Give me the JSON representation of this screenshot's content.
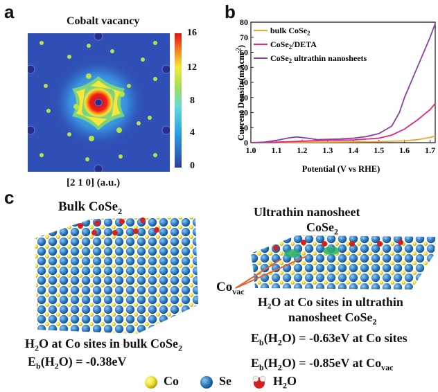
{
  "panel_a": {
    "letter": "a",
    "title": "Cobalt vacancy",
    "axis_label": "[2 1 0] (a.u.)",
    "colorbar_ticks": [
      "16",
      "12",
      "8",
      "4",
      "0"
    ]
  },
  "panel_b": {
    "letter": "b"
  },
  "panel_c": {
    "letter": "c",
    "bulk_title": "Bulk CoSe",
    "bulk_title_sub": "2",
    "nano_title_line1": "Ultrathin nanosheet",
    "nano_title_line2": "CoSe",
    "nano_title_sub": "2",
    "covac_label": "Co",
    "covac_sub": "vac",
    "bulk_caption": "H",
    "bulk_caption_rest": "O at Co sites in bulk CoSe",
    "bulk_eb_prefix": "E",
    "bulk_eb_sub": "b",
    "bulk_eb_mid": "(H",
    "bulk_eb_rest": "O) = -0.38eV",
    "nano_caption_line1": "H₂O at Co sites in ultrathin",
    "nano_caption_line2": "nanosheet CoSe",
    "nano_eb1_rest": "O) = -0.63eV at Co sites",
    "nano_eb2_rest": "O) = -0.85eV at Co",
    "nano_eb2_sub": "vac",
    "legend": [
      {
        "label": "Co",
        "color": "#f2e12e"
      },
      {
        "label": "Se",
        "color": "#2f7fc1"
      },
      {
        "label": "H",
        "sub": "2",
        "rest": "O",
        "color": "#d42020"
      }
    ]
  },
  "chart_data": {
    "type": "line",
    "xlabel": "Potential (V vs RHE)",
    "ylabel": "Current Density(mAcm",
    "ylabel_sup": "-2",
    "xlim": [
      1.0,
      1.72
    ],
    "ylim": [
      0,
      80
    ],
    "xticks": [
      "1.0",
      "1.1",
      "1.2",
      "1.3",
      "1.4",
      "1.5",
      "1.6",
      "1.7"
    ],
    "yticks": [
      "0",
      "10",
      "20",
      "30",
      "40",
      "50",
      "60",
      "70",
      "80"
    ],
    "legend_position": "top-left",
    "series": [
      {
        "name": "bulk CoSe",
        "name_sub": "2",
        "color": "#f5a623",
        "x": [
          1.0,
          1.1,
          1.2,
          1.3,
          1.4,
          1.5,
          1.6,
          1.65,
          1.7,
          1.72
        ],
        "y": [
          0,
          0.2,
          0.3,
          0.4,
          0.5,
          0.7,
          1.2,
          2,
          3.5,
          4.5
        ]
      },
      {
        "name": "CoSe",
        "name_sub": "2",
        "name_rest": "/DETA",
        "color": "#e8237c",
        "x": [
          1.0,
          1.1,
          1.2,
          1.3,
          1.4,
          1.5,
          1.55,
          1.6,
          1.65,
          1.7,
          1.72
        ],
        "y": [
          0,
          0.3,
          1,
          1.6,
          1.8,
          3,
          5,
          9,
          15,
          22,
          26
        ]
      },
      {
        "name": "CoSe",
        "name_sub": "2",
        "name_rest": " ultrathin nanosheets",
        "color": "#8a3fa0",
        "x": [
          1.0,
          1.05,
          1.1,
          1.15,
          1.18,
          1.22,
          1.26,
          1.3,
          1.35,
          1.4,
          1.45,
          1.5,
          1.55,
          1.58,
          1.6,
          1.65,
          1.7,
          1.72
        ],
        "y": [
          0,
          0.3,
          1.5,
          3.2,
          3.8,
          3.0,
          2.0,
          2.2,
          2.5,
          3,
          4,
          6,
          11,
          20,
          30,
          50,
          70,
          79
        ]
      }
    ]
  }
}
